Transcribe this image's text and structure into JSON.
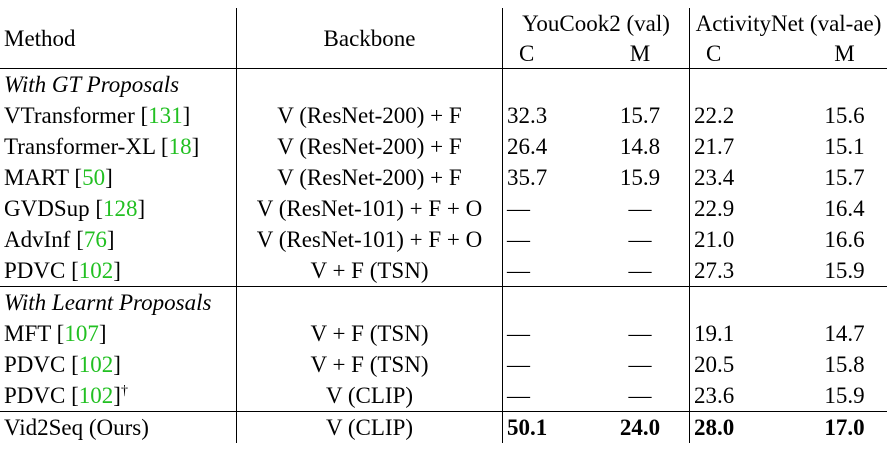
{
  "header": {
    "method": "Method",
    "backbone": "Backbone",
    "youcook": "YouCook2 (val)",
    "activitynet": "ActivityNet (val-ae)",
    "c": "C",
    "m": "M"
  },
  "groups": [
    {
      "title": "With GT Proposals",
      "rows": [
        {
          "method": "VTransformer",
          "cite": "131",
          "dagger": "",
          "backbone": "V (ResNet-200) + F",
          "yc": "32.3",
          "ym": "15.7",
          "ac": "22.2",
          "am": "15.6"
        },
        {
          "method": "Transformer-XL",
          "cite": "18",
          "dagger": "",
          "backbone": "V (ResNet-200) + F",
          "yc": "26.4",
          "ym": "14.8",
          "ac": "21.7",
          "am": "15.1"
        },
        {
          "method": "MART",
          "cite": "50",
          "dagger": "",
          "backbone": "V (ResNet-200) + F",
          "yc": "35.7",
          "ym": "15.9",
          "ac": "23.4",
          "am": "15.7"
        },
        {
          "method": "GVDSup",
          "cite": "128",
          "dagger": "",
          "backbone": "V (ResNet-101) + F + O",
          "yc": "—",
          "ym": "—",
          "ac": "22.9",
          "am": "16.4"
        },
        {
          "method": "AdvInf",
          "cite": "76",
          "dagger": "",
          "backbone": "V (ResNet-101) + F + O",
          "yc": "—",
          "ym": "—",
          "ac": "21.0",
          "am": "16.6"
        },
        {
          "method": "PDVC",
          "cite": "102",
          "dagger": "",
          "backbone": "V + F (TSN)",
          "yc": "—",
          "ym": "—",
          "ac": "27.3",
          "am": "15.9"
        }
      ]
    },
    {
      "title": "With Learnt Proposals",
      "rows": [
        {
          "method": "MFT",
          "cite": "107",
          "dagger": "",
          "backbone": "V + F (TSN)",
          "yc": "—",
          "ym": "—",
          "ac": "19.1",
          "am": "14.7"
        },
        {
          "method": "PDVC",
          "cite": "102",
          "dagger": "",
          "backbone": "V + F (TSN)",
          "yc": "—",
          "ym": "—",
          "ac": "20.5",
          "am": "15.8"
        },
        {
          "method": "PDVC",
          "cite": "102",
          "dagger": "†",
          "backbone": "V (CLIP)",
          "yc": "—",
          "ym": "—",
          "ac": "23.6",
          "am": "15.9"
        }
      ]
    }
  ],
  "final": {
    "method": "Vid2Seq (Ours)",
    "backbone": "V (CLIP)",
    "yc": "50.1",
    "ym": "24.0",
    "ac": "28.0",
    "am": "17.0"
  }
}
